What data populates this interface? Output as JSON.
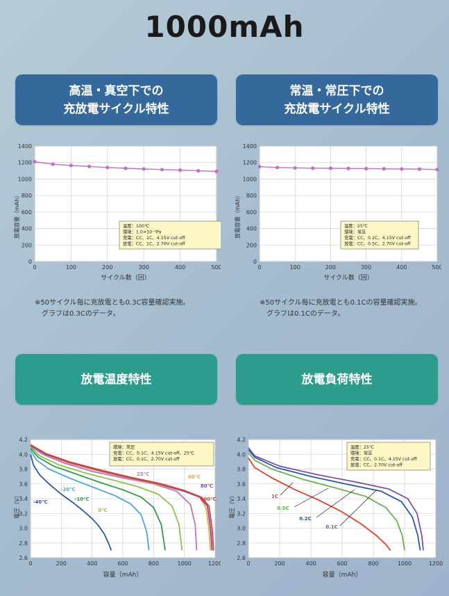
{
  "title": "1000mAh",
  "banners": [
    {
      "text": "高温・真空下での\n充放電サイクル特性",
      "color": "#35699b"
    },
    {
      "text": "常温・常圧下での\n充放電サイクル特性",
      "color": "#35699b"
    },
    {
      "text": "放電温度特性",
      "color": "#2e9c8c"
    },
    {
      "text": "放電負荷特性",
      "color": "#2e9c8c"
    }
  ],
  "notes": [
    [
      "※50サイクル毎に充放電とも0.3C容量確認実施。",
      "グラフは0.3Cのデータ。"
    ],
    [
      "※50サイクル毎に充放電とも0.1Cの容量確認実施。",
      "グラフは0.1Cのデータ。"
    ]
  ],
  "chart_data": [
    {
      "type": "line",
      "xlabel": "サイクル数（回）",
      "ylabel": "放電容量（mAh）",
      "xlim": [
        0,
        500
      ],
      "ylim": [
        0,
        1400
      ],
      "xticks": [
        0,
        100,
        200,
        300,
        400,
        500
      ],
      "yticks": [
        0,
        200,
        400,
        600,
        800,
        1000,
        1200,
        1400
      ],
      "grid": true,
      "series": [
        {
          "color": "#c070c8",
          "x": [
            0,
            50,
            100,
            150,
            200,
            250,
            300,
            350,
            400,
            450,
            500
          ],
          "y": [
            1210,
            1180,
            1165,
            1152,
            1140,
            1130,
            1122,
            1115,
            1108,
            1100,
            1092
          ]
        }
      ],
      "annotation": [
        "温度：100℃",
        "環境：1.0×10⁻²Pa",
        "充電：CC、1C、4.15V cut-off",
        "放電：CC、1C、2.70V cut-off"
      ]
    },
    {
      "type": "line",
      "xlabel": "サイクル数（回）",
      "ylabel": "放電容量（mAh）",
      "xlim": [
        0,
        500
      ],
      "ylim": [
        0,
        1400
      ],
      "xticks": [
        0,
        100,
        200,
        300,
        400,
        500
      ],
      "yticks": [
        0,
        200,
        400,
        600,
        800,
        1000,
        1200,
        1400
      ],
      "grid": true,
      "series": [
        {
          "color": "#c070c8",
          "x": [
            0,
            50,
            100,
            150,
            200,
            250,
            300,
            350,
            400,
            450,
            500
          ],
          "y": [
            1150,
            1140,
            1135,
            1132,
            1130,
            1128,
            1126,
            1124,
            1122,
            1120,
            1115
          ]
        }
      ],
      "annotation": [
        "温度：25℃",
        "環境：常圧",
        "充電：CC、0.2C、4.15V cut-off",
        "放電：CC、0.5C、2.70V cut-off"
      ]
    },
    {
      "type": "line",
      "xlabel": "容量（mAh）",
      "ylabel": "電圧（V）",
      "xlim": [
        0,
        1200
      ],
      "ylim": [
        2.6,
        4.2
      ],
      "xticks": [
        0,
        200,
        400,
        600,
        800,
        1000,
        1200
      ],
      "yticks": [
        2.6,
        2.8,
        3.0,
        3.2,
        3.4,
        3.6,
        3.8,
        4.0,
        4.2
      ],
      "grid": true,
      "series": [
        {
          "name": "-40℃",
          "color": "#2b57a6",
          "x": [
            0,
            20,
            60,
            120,
            200,
            280,
            340,
            400,
            440,
            480,
            510,
            525
          ],
          "y": [
            4.0,
            3.85,
            3.72,
            3.6,
            3.46,
            3.34,
            3.24,
            3.13,
            3.04,
            2.92,
            2.78,
            2.7
          ]
        },
        {
          "name": "-20℃",
          "color": "#4ca4dc",
          "x": [
            0,
            40,
            120,
            250,
            400,
            550,
            650,
            720,
            755,
            770
          ],
          "y": [
            4.05,
            3.92,
            3.8,
            3.68,
            3.56,
            3.44,
            3.33,
            3.18,
            2.95,
            2.7
          ]
        },
        {
          "name": "-10℃",
          "color": "#2f9a48",
          "x": [
            0,
            50,
            150,
            300,
            450,
            600,
            720,
            800,
            850,
            875
          ],
          "y": [
            4.08,
            3.96,
            3.84,
            3.73,
            3.62,
            3.52,
            3.42,
            3.28,
            3.05,
            2.7
          ]
        },
        {
          "name": "0℃",
          "color": "#8cc44a",
          "x": [
            0,
            60,
            180,
            350,
            520,
            700,
            830,
            920,
            965,
            985
          ],
          "y": [
            4.1,
            3.98,
            3.86,
            3.75,
            3.66,
            3.56,
            3.46,
            3.3,
            3.05,
            2.7
          ]
        },
        {
          "name": "25℃",
          "color": "#c070c8",
          "x": [
            0,
            80,
            220,
            400,
            600,
            800,
            950,
            1040,
            1070,
            1080
          ],
          "y": [
            4.11,
            4.0,
            3.88,
            3.77,
            3.68,
            3.6,
            3.5,
            3.32,
            3.05,
            2.7
          ]
        },
        {
          "name": "60℃",
          "color": "#f0a040",
          "x": [
            0,
            100,
            250,
            450,
            650,
            850,
            1000,
            1100,
            1140,
            1160,
            1170
          ],
          "y": [
            4.12,
            4.0,
            3.88,
            3.77,
            3.67,
            3.58,
            3.5,
            3.42,
            3.28,
            3.0,
            2.7
          ]
        },
        {
          "name": "80℃",
          "color": "#7850a8",
          "x": [
            0,
            100,
            250,
            450,
            650,
            850,
            1000,
            1100,
            1150,
            1170,
            1180
          ],
          "y": [
            4.12,
            4.0,
            3.89,
            3.78,
            3.68,
            3.59,
            3.5,
            3.42,
            3.3,
            3.0,
            2.7
          ]
        },
        {
          "name": "100℃",
          "color": "#e0402a",
          "x": [
            0,
            100,
            250,
            450,
            650,
            850,
            1000,
            1110,
            1160,
            1180,
            1190
          ],
          "y": [
            4.13,
            4.01,
            3.9,
            3.79,
            3.69,
            3.6,
            3.51,
            3.42,
            3.3,
            3.0,
            2.7
          ]
        }
      ],
      "annotation": [
        "環境：常圧",
        "充電：CC、0.1C、4.15V cut-off、25℃",
        "放電：CC、0.1C、2.70V cut-off"
      ]
    },
    {
      "type": "line",
      "xlabel": "容量（mAh）",
      "ylabel": "電圧（V）",
      "xlim": [
        0,
        1200
      ],
      "ylim": [
        2.6,
        4.2
      ],
      "xticks": [
        0,
        200,
        400,
        600,
        800,
        1000,
        1200
      ],
      "yticks": [
        2.6,
        2.8,
        3.0,
        3.2,
        3.4,
        3.6,
        3.8,
        4.0,
        4.2
      ],
      "grid": true,
      "series": [
        {
          "name": "1C",
          "color": "#e0402a",
          "x": [
            0,
            40,
            150,
            300,
            450,
            600,
            720,
            820,
            880,
            910
          ],
          "y": [
            3.95,
            3.82,
            3.68,
            3.52,
            3.38,
            3.22,
            3.06,
            2.9,
            2.78,
            2.7
          ]
        },
        {
          "name": "0.5C",
          "color": "#6ab04c",
          "x": [
            0,
            40,
            150,
            350,
            550,
            750,
            880,
            950,
            985,
            1000
          ],
          "y": [
            4.02,
            3.92,
            3.8,
            3.66,
            3.55,
            3.43,
            3.28,
            3.1,
            2.9,
            2.7
          ]
        },
        {
          "name": "0.2C",
          "color": "#2b57a6",
          "x": [
            0,
            40,
            180,
            400,
            620,
            850,
            980,
            1050,
            1085,
            1100
          ],
          "y": [
            4.06,
            3.96,
            3.82,
            3.7,
            3.6,
            3.5,
            3.36,
            3.15,
            2.9,
            2.7
          ]
        },
        {
          "name": "0.1C",
          "color": "#7850a8",
          "x": [
            0,
            40,
            200,
            450,
            700,
            900,
            1020,
            1080,
            1110,
            1120
          ],
          "y": [
            4.09,
            3.98,
            3.84,
            3.72,
            3.62,
            3.53,
            3.4,
            3.2,
            2.9,
            2.7
          ]
        }
      ],
      "annotation": [
        "温度：25℃",
        "環境：常圧",
        "充電：CC、0.1C、4.15V cut-off",
        "放電：CC、2.70V cut-off"
      ]
    }
  ]
}
